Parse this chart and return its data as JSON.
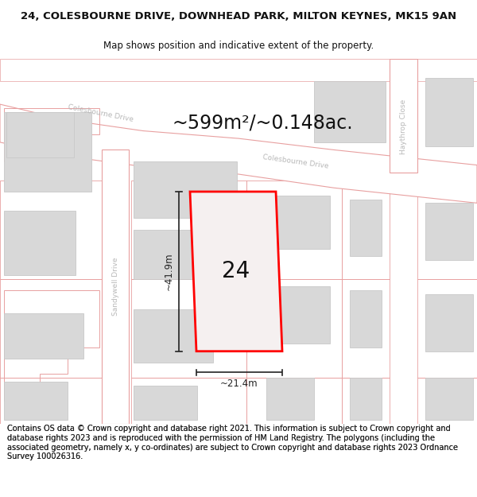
{
  "title_line1": "24, COLESBOURNE DRIVE, DOWNHEAD PARK, MILTON KEYNES, MK15 9AN",
  "title_line2": "Map shows position and indicative extent of the property.",
  "area_text": "~599m²/~0.148ac.",
  "number_label": "24",
  "width_label": "~21.4m",
  "height_label": "~41.9m",
  "footer_text": "Contains OS data © Crown copyright and database right 2021. This information is subject to Crown copyright and database rights 2023 and is reproduced with the permission of HM Land Registry. The polygons (including the associated geometry, namely x, y co-ordinates) are subject to Crown copyright and database rights 2023 Ordnance Survey 100026316.",
  "map_bg": "#f7f0f0",
  "road_fill": "#ffffff",
  "building_fill": "#d8d8d8",
  "road_stroke": "#e8a0a0",
  "building_stroke": "#c8c8c8",
  "parcel_stroke": "#e8a0a0",
  "highlight_stroke": "#ff0000",
  "dim_color": "#222222",
  "street_label_color": "#b8b8b8",
  "title_fontsize": 9.5,
  "subtitle_fontsize": 8.5,
  "area_fontsize": 17,
  "number_fontsize": 20,
  "dim_fontsize": 8.5,
  "footer_fontsize": 7.0,
  "street_fontsize": 6.5
}
